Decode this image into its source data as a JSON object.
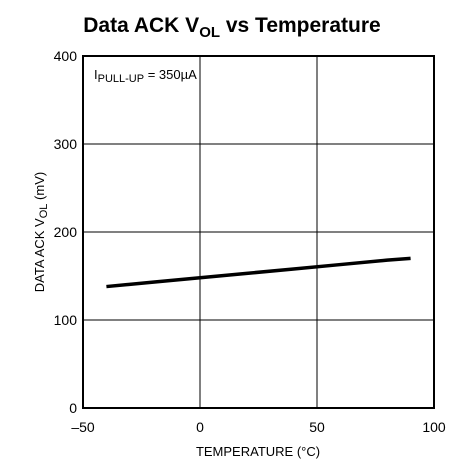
{
  "chart_data": {
    "type": "line",
    "title": {
      "main": "Data ACK V",
      "sub": "OL",
      "rest": " vs Temperature"
    },
    "xlabel": "TEMPERATURE (°C)",
    "ylabel": {
      "main": "DATA ACK V",
      "sub": "OL",
      "rest": " (mV)"
    },
    "xlim": [
      -50,
      100
    ],
    "ylim": [
      0,
      400
    ],
    "x_ticks": [
      {
        "value": -50,
        "label": "–50"
      },
      {
        "value": 0,
        "label": "0"
      },
      {
        "value": 50,
        "label": "50"
      },
      {
        "value": 100,
        "label": "100"
      }
    ],
    "y_ticks": [
      {
        "value": 0,
        "label": "0"
      },
      {
        "value": 100,
        "label": "100"
      },
      {
        "value": 200,
        "label": "200"
      },
      {
        "value": 300,
        "label": "300"
      },
      {
        "value": 400,
        "label": "400"
      }
    ],
    "grid": true,
    "annotation": {
      "main": "I",
      "sub": "PULL-UP",
      "rest": " = 350µA"
    },
    "series": [
      {
        "x": [
          -40,
          -20,
          0,
          20,
          40,
          60,
          80,
          90
        ],
        "y": [
          138,
          143,
          148,
          153,
          158,
          163,
          168,
          170
        ]
      }
    ]
  }
}
